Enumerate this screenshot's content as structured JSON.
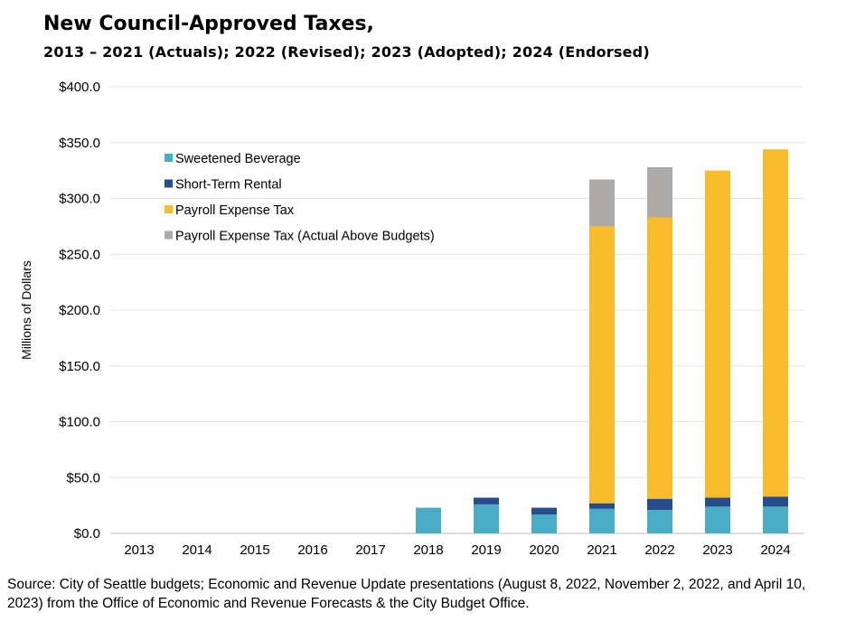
{
  "header": {
    "title": "New Council-Approved Taxes,",
    "subtitle": "2013 – 2021 (Actuals); 2022 (Revised); 2023 (Adopted); 2024 (Endorsed)"
  },
  "source_note": "Source: City of Seattle budgets; Economic and Revenue Update presentations (August 8, 2022, November 2, 2022, and April 10, 2023) from the Office of Economic and Revenue Forecasts & the City Budget Office.",
  "chart_data": {
    "type": "bar",
    "stacked": true,
    "title": "New Council-Approved Taxes, 2013 – 2021 (Actuals); 2022 (Revised); 2023 (Adopted); 2024 (Endorsed)",
    "xlabel": "",
    "ylabel": "Millions of Dollars",
    "ylim": [
      0,
      400
    ],
    "yticks": [
      0,
      50,
      100,
      150,
      200,
      250,
      300,
      350,
      400
    ],
    "ytick_labels": [
      "$0.0",
      "$50.0",
      "$100.0",
      "$150.0",
      "$200.0",
      "$250.0",
      "$300.0",
      "$350.0",
      "$400.0"
    ],
    "grid": true,
    "legend_position": "top-left",
    "categories": [
      "2013",
      "2014",
      "2015",
      "2016",
      "2017",
      "2018",
      "2019",
      "2020",
      "2021",
      "2022",
      "2023",
      "2024"
    ],
    "series": [
      {
        "name": "Sweetened Beverage",
        "color": "#4bacc6",
        "values": [
          0,
          0,
          0,
          0,
          0,
          23,
          26,
          17,
          22,
          21,
          24,
          24
        ]
      },
      {
        "name": "Short-Term Rental",
        "color": "#264c8c",
        "values": [
          0,
          0,
          0,
          0,
          0,
          0,
          6,
          6,
          5,
          10,
          8,
          9
        ]
      },
      {
        "name": "Payroll Expense Tax",
        "color": "#f8bc2c",
        "values": [
          0,
          0,
          0,
          0,
          0,
          0,
          0,
          0,
          248,
          252,
          293,
          311
        ]
      },
      {
        "name": "Payroll Expense Tax (Actual Above Budgets)",
        "color": "#adaaaa",
        "values": [
          0,
          0,
          0,
          0,
          0,
          0,
          0,
          0,
          42,
          45,
          0,
          0
        ]
      }
    ]
  }
}
